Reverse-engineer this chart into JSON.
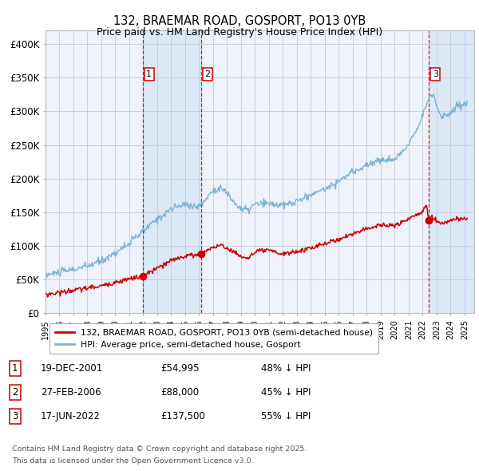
{
  "title1": "132, BRAEMAR ROAD, GOSPORT, PO13 0YB",
  "title2": "Price paid vs. HM Land Registry's House Price Index (HPI)",
  "ylabel_ticks": [
    "£0",
    "£50K",
    "£100K",
    "£150K",
    "£200K",
    "£250K",
    "£300K",
    "£350K",
    "£400K"
  ],
  "ytick_values": [
    0,
    50000,
    100000,
    150000,
    200000,
    250000,
    300000,
    350000,
    400000
  ],
  "ylim": [
    0,
    420000
  ],
  "xlim_start": 1995.0,
  "xlim_end": 2025.7,
  "sale_dates": [
    2001.97,
    2006.16,
    2022.46
  ],
  "sale_prices": [
    54995,
    88000,
    137500
  ],
  "sale_price_strs": [
    "£54,995",
    "£88,000",
    "£137,500"
  ],
  "sale_labels": [
    "1",
    "2",
    "3"
  ],
  "sale_pct": [
    "48% ↓ HPI",
    "45% ↓ HPI",
    "55% ↓ HPI"
  ],
  "sale_date_strs": [
    "19-DEC-2001",
    "27-FEB-2006",
    "17-JUN-2022"
  ],
  "hpi_color": "#7ab3d4",
  "price_color": "#cc0000",
  "vline_color": "#cc0000",
  "shade_color": "#dbe8f5",
  "grid_color": "#c8c8d8",
  "bg_color": "#eef2fa",
  "legend_line1": "132, BRAEMAR ROAD, GOSPORT, PO13 0YB (semi-detached house)",
  "legend_line2": "HPI: Average price, semi-detached house, Gosport",
  "footnote1": "Contains HM Land Registry data © Crown copyright and database right 2025.",
  "footnote2": "This data is licensed under the Open Government Licence v3.0.",
  "xtick_years": [
    1995,
    1996,
    1997,
    1998,
    1999,
    2000,
    2001,
    2002,
    2003,
    2004,
    2005,
    2006,
    2007,
    2008,
    2009,
    2010,
    2011,
    2012,
    2013,
    2014,
    2015,
    2016,
    2017,
    2018,
    2019,
    2020,
    2021,
    2022,
    2023,
    2024,
    2025
  ]
}
